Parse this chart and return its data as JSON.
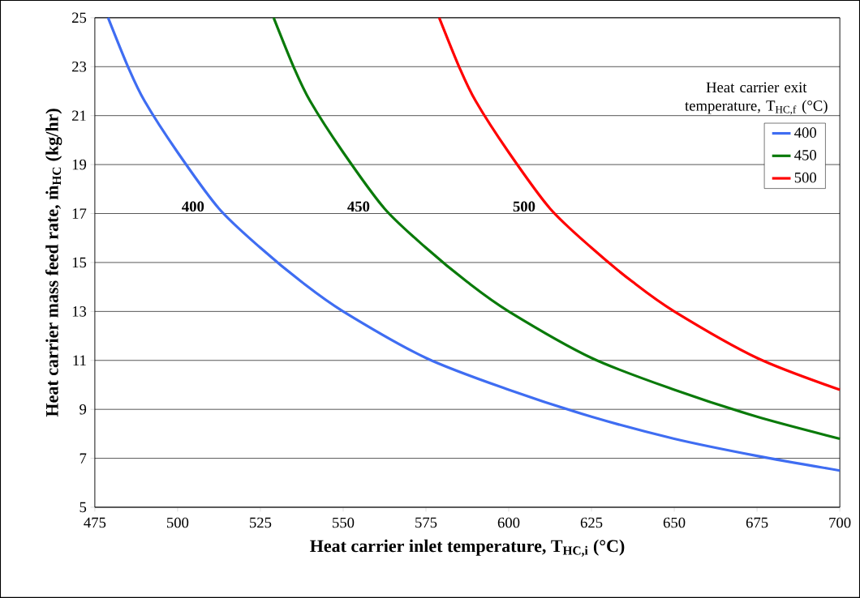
{
  "chart_data": {
    "type": "line",
    "xlabel": "Heat carrier inlet temperature, T$_{HC,i}$ (°C)",
    "ylabel": "**Heat carrier mass feed rate,** ṁ$_{HC}$ **(kg/hr)**",
    "legend_title": "Heat carrier exit temperature, T$_{HC,f}$ (°C)",
    "series": [
      {
        "name": "400",
        "color": "#3f6df2",
        "x": [
          479,
          485,
          490,
          500,
          512.5,
          525,
          537.5,
          550,
          575,
          600,
          625,
          650,
          675,
          700
        ],
        "values": [
          25,
          23,
          21.6,
          19.5,
          17.2,
          15.6,
          14.2,
          13.0,
          11.1,
          9.8,
          8.7,
          7.8,
          7.1,
          6.5
        ]
      },
      {
        "name": "450",
        "color": "#0a7a0a",
        "x": [
          529,
          535,
          540,
          550,
          562.5,
          575,
          587.5,
          600,
          625,
          650,
          675,
          700
        ],
        "values": [
          25,
          23,
          21.6,
          19.5,
          17.2,
          15.6,
          14.2,
          13.0,
          11.1,
          9.8,
          8.7,
          7.8
        ]
      },
      {
        "name": "500",
        "color": "#ff0000",
        "x": [
          579,
          585,
          590,
          600,
          612.5,
          625,
          637.5,
          650,
          675,
          700
        ],
        "values": [
          25,
          23,
          21.6,
          19.5,
          17.2,
          15.6,
          14.2,
          13.0,
          11.1,
          9.8
        ]
      }
    ],
    "annotations": [
      "400",
      "450",
      "500"
    ],
    "xlim": [
      475,
      700
    ],
    "ylim": [
      5,
      25
    ],
    "xticks": [
      475,
      500,
      525,
      550,
      575,
      600,
      625,
      650,
      675,
      700
    ],
    "yticks": [
      5,
      7,
      9,
      11,
      13,
      15,
      17,
      19,
      21,
      23,
      25
    ],
    "grid": "y",
    "legend": "top right",
    "marker": "none",
    "line_style": "solid"
  }
}
